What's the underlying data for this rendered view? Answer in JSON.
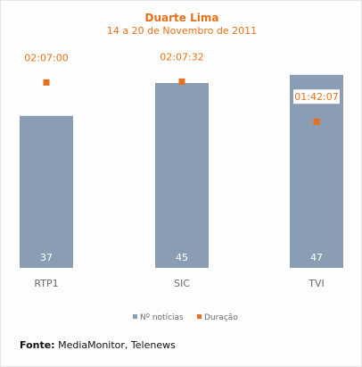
{
  "chart_data": {
    "type": "bar",
    "title": "Duarte Lima",
    "subtitle": "14 a 20 de Novembro de 2011",
    "categories": [
      "RTP1",
      "SIC",
      "TVI"
    ],
    "series": [
      {
        "name": "Nº notícias",
        "type": "bar",
        "color": "#8a9db5",
        "values": [
          37,
          45,
          47
        ]
      },
      {
        "name": "Duração",
        "type": "scatter",
        "color": "#e8701a",
        "values": [
          7620,
          7652,
          6127
        ],
        "labels": [
          "02:07:00",
          "02:07:32",
          "01:42:07"
        ]
      }
    ],
    "legend_position": "bottom",
    "grid": false
  },
  "source": {
    "label": "Fonte:",
    "text": "MediaMonitor, Telenews"
  }
}
